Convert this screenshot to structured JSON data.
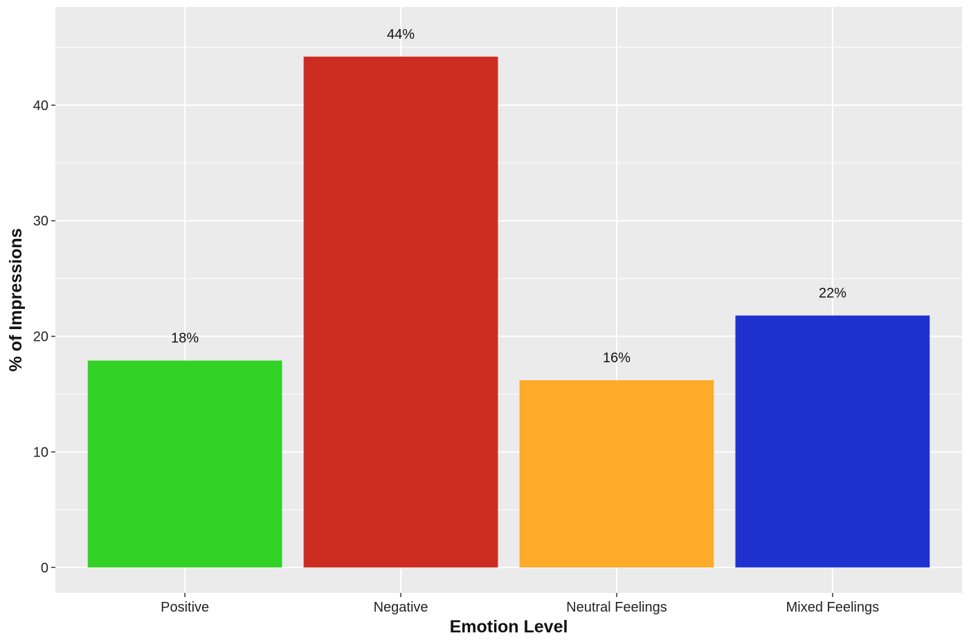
{
  "chart_data": {
    "type": "bar",
    "categories": [
      "Positive",
      "Negative",
      "Neutral Feelings",
      "Mixed Feelings"
    ],
    "values": [
      17.9,
      44.2,
      16.2,
      21.8
    ],
    "data_labels": [
      "18%",
      "44%",
      "16%",
      "22%"
    ],
    "colors": [
      "#32d125",
      "#cd2c21",
      "#fdab28",
      "#1f32cf"
    ],
    "title": "",
    "xlabel": "Emotion Level",
    "ylabel": "% of Impressions",
    "ylim": [
      -2.2,
      48.5
    ],
    "yticks": [
      0,
      10,
      20,
      30,
      40
    ],
    "grid": true,
    "panel_background": "#ebebeb",
    "gridline_color": "#ffffff"
  }
}
